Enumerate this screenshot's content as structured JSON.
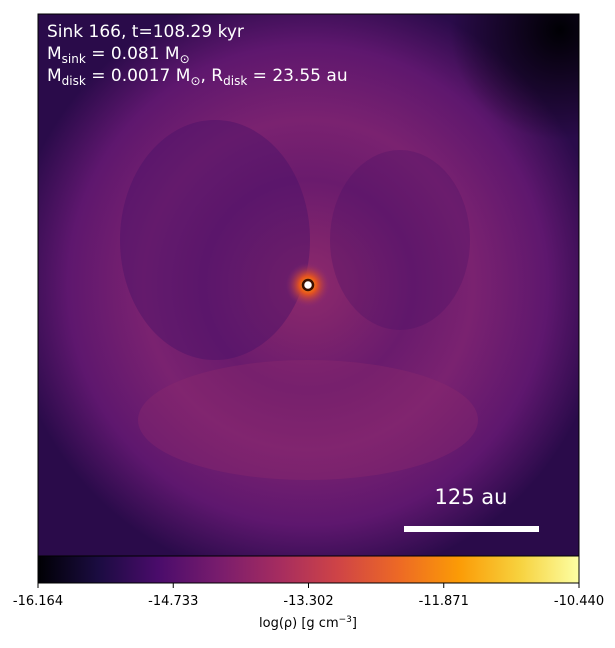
{
  "chart_data": {
    "type": "density-map",
    "lines": [
      "Sink 166, t=108.29 kyr",
      [
        "M",
        "sink",
        " = 0.081 M",
        "⊙"
      ],
      [
        "M",
        "disk",
        " = 0.0017 M",
        "⊙",
        ", R",
        "disk",
        " = 23.55 au"
      ]
    ],
    "scale_bar_label": "125 au",
    "colorbar": {
      "label": [
        "log(ρ) [g cm",
        "−3",
        "]"
      ],
      "lim": [
        -16.164,
        -10.44
      ],
      "ticks": [
        -16.164,
        -14.733,
        -13.302,
        -11.871,
        {
          "value": -10.44,
          "label": "-10.440"
        }
      ],
      "colors": [
        "#000004",
        "#1b0c41",
        "#4a0c6b",
        "#781c6d",
        "#a52c60",
        "#cf4446",
        "#ed6925",
        "#fb9b06",
        "#f7d13d",
        "#fcffa4"
      ]
    }
  }
}
